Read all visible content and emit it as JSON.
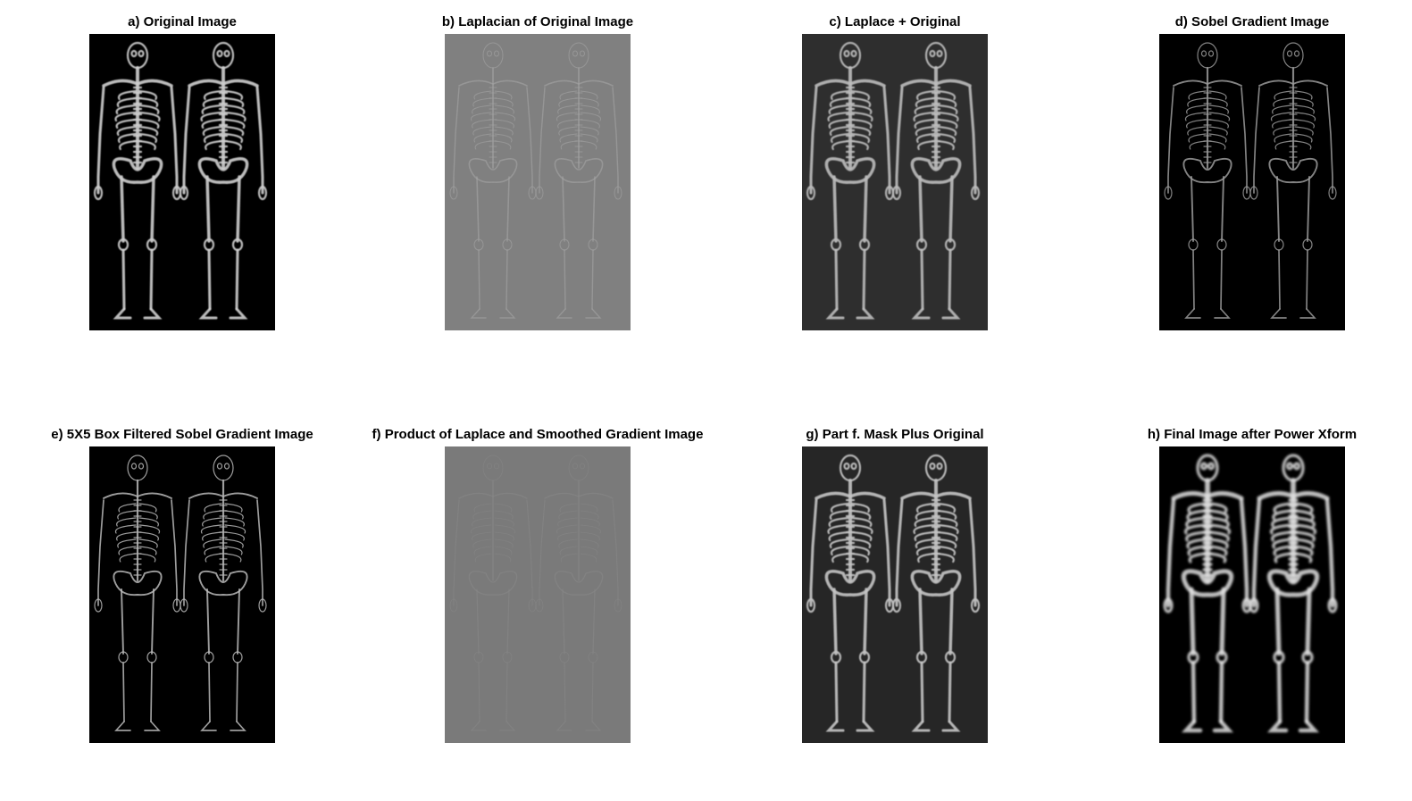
{
  "figure": {
    "panels": [
      {
        "id": "a",
        "title": "a) Original Image",
        "background": "#000000",
        "bone": "#cfcfcf",
        "style": "bright"
      },
      {
        "id": "b",
        "title": "b) Laplacian of Original Image",
        "background": "#808080",
        "bone": "#a8a8a8",
        "style": "edge"
      },
      {
        "id": "c",
        "title": "c) Laplace + Original",
        "background": "#2e2e2e",
        "bone": "#bdbdbd",
        "style": "bright"
      },
      {
        "id": "d",
        "title": "d) Sobel Gradient Image",
        "background": "#000000",
        "bone": "#9a9a9a",
        "style": "grad"
      },
      {
        "id": "e",
        "title": "e) 5X5 Box Filtered Sobel Gradient Image",
        "background": "#000000",
        "bone": "#b8b8b8",
        "style": "grad"
      },
      {
        "id": "f",
        "title": "f) Product of Laplace and Smoothed Gradient Image",
        "background": "#7a7a7a",
        "bone": "#8e8e8e",
        "style": "faint"
      },
      {
        "id": "g",
        "title": "g) Part f. Mask Plus Original",
        "background": "#262626",
        "bone": "#c4c4c4",
        "style": "bright"
      },
      {
        "id": "h",
        "title": "h) Final Image after Power Xform",
        "background": "#000000",
        "bone": "#e0e0e0",
        "style": "power"
      }
    ]
  }
}
